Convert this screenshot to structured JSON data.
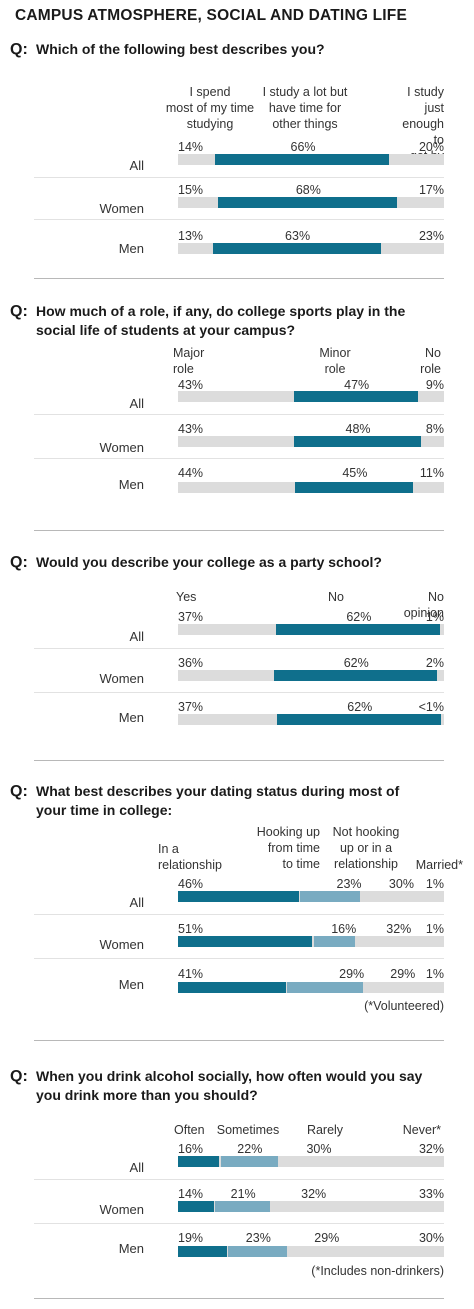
{
  "title": "CAMPUS ATMOSPHERE, SOCIAL AND DATING LIFE",
  "colors": {
    "dark": "#0f6f8c",
    "light": "#79abc1",
    "gray": "#dcdcdc"
  },
  "chart_data": [
    {
      "type": "bar",
      "question": "Which of the following best describes you?",
      "categories": [
        "All",
        "Women",
        "Men"
      ],
      "series": [
        {
          "name": "I spend most of my time studying",
          "values": [
            14,
            15,
            13
          ],
          "labels": [
            "14%",
            "15%",
            "13%"
          ]
        },
        {
          "name": "I study a lot but have time for other things",
          "values": [
            66,
            68,
            63
          ],
          "labels": [
            "66%",
            "68%",
            "63%"
          ]
        },
        {
          "name": "I study just enough to get by",
          "values": [
            20,
            17,
            23
          ],
          "labels": [
            "20%",
            "17%",
            "23%"
          ]
        }
      ]
    },
    {
      "type": "bar",
      "question": "How much of a role, if any, do college sports play in the social life of students at your campus?",
      "categories": [
        "All",
        "Women",
        "Men"
      ],
      "series": [
        {
          "name": "Major role",
          "values": [
            43,
            43,
            44
          ],
          "labels": [
            "43%",
            "43%",
            "44%"
          ]
        },
        {
          "name": "Minor role",
          "values": [
            47,
            48,
            45
          ],
          "labels": [
            "47%",
            "48%",
            "45%"
          ]
        },
        {
          "name": "No role",
          "values": [
            9,
            8,
            11
          ],
          "labels": [
            "9%",
            "8%",
            "11%"
          ]
        }
      ]
    },
    {
      "type": "bar",
      "question": "Would you describe your college as a party school?",
      "categories": [
        "All",
        "Women",
        "Men"
      ],
      "series": [
        {
          "name": "Yes",
          "values": [
            37,
            36,
            37
          ],
          "labels": [
            "37%",
            "36%",
            "37%"
          ]
        },
        {
          "name": "No",
          "values": [
            62,
            62,
            62
          ],
          "labels": [
            "62%",
            "62%",
            "62%"
          ]
        },
        {
          "name": "No opinion",
          "values": [
            1,
            2,
            0.5
          ],
          "labels": [
            "1%",
            "2%",
            "<1%"
          ]
        }
      ]
    },
    {
      "type": "bar",
      "question": "What best describes your dating status during most of your time in college:",
      "categories": [
        "All",
        "Women",
        "Men"
      ],
      "series": [
        {
          "name": "In a relationship",
          "values": [
            46,
            51,
            41
          ],
          "labels": [
            "46%",
            "51%",
            "41%"
          ]
        },
        {
          "name": "Hooking up from time to time",
          "values": [
            23,
            16,
            29
          ],
          "labels": [
            "23%",
            "16%",
            "29%"
          ]
        },
        {
          "name": "Not hooking up or in a relationship",
          "values": [
            30,
            32,
            29
          ],
          "labels": [
            "30%",
            "32%",
            "29%"
          ]
        },
        {
          "name": "Married*",
          "values": [
            1,
            1,
            1
          ],
          "labels": [
            "1%",
            "1%",
            "1%"
          ]
        }
      ],
      "note": "(*Volunteered)"
    },
    {
      "type": "bar",
      "question": "When you drink alcohol socially, how often would you say you drink more than you should?",
      "categories": [
        "All",
        "Women",
        "Men"
      ],
      "series": [
        {
          "name": "Often",
          "values": [
            16,
            14,
            19
          ],
          "labels": [
            "16%",
            "14%",
            "19%"
          ]
        },
        {
          "name": "Sometimes",
          "values": [
            22,
            21,
            23
          ],
          "labels": [
            "22%",
            "21%",
            "23%"
          ]
        },
        {
          "name": "Rarely",
          "values": [
            30,
            32,
            29
          ],
          "labels": [
            "30%",
            "32%",
            "29%"
          ]
        },
        {
          "name": "Never*",
          "values": [
            32,
            33,
            30
          ],
          "labels": [
            "32%",
            "33%",
            "30%"
          ]
        }
      ],
      "note": "(*Includes non-drinkers)"
    }
  ]
}
